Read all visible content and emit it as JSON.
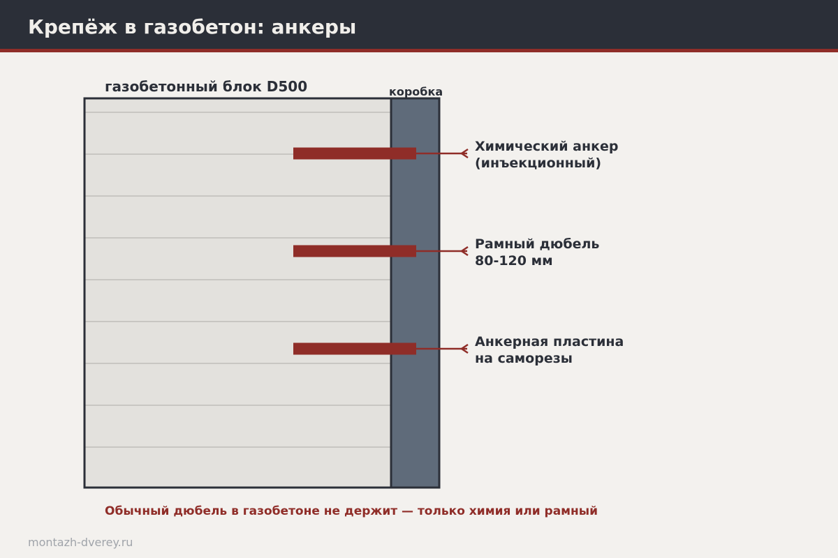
{
  "header": {
    "title": "Крепёж в газобетон: анкеры"
  },
  "diagram": {
    "block_label": "газобетонный блок D500",
    "frame_label": "коробка",
    "anchors": [
      {
        "lines": [
          "Химический анкер",
          "(инъекционный)"
        ]
      },
      {
        "lines": [
          "Рамный дюбель",
          "80-120 мм"
        ]
      },
      {
        "lines": [
          "Анкерная пластина",
          "на саморезы"
        ]
      }
    ]
  },
  "note": "Обычный дюбель в газобетоне не держит — только химия или рамный",
  "footer": {
    "site": "montazh-dverey.ru"
  }
}
